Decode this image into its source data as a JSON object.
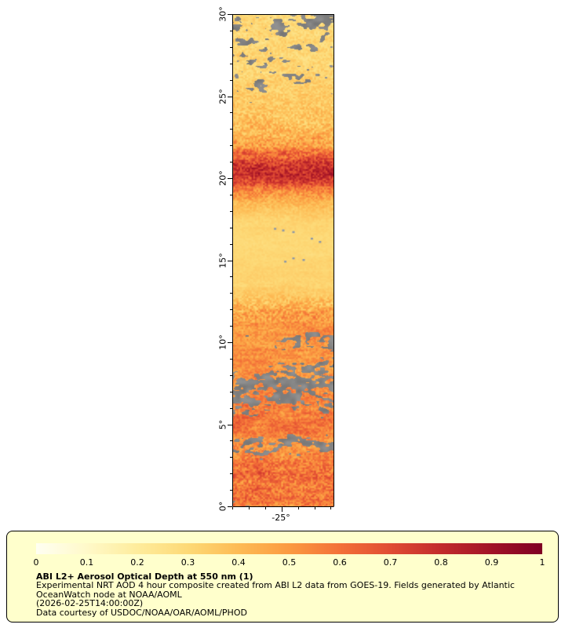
{
  "title": "ABI L2+ Aerosol Optical Depth at 550 nm (1)",
  "axes": {
    "lat_ticks": [
      {
        "value": 30,
        "label": "30°"
      },
      {
        "value": 25,
        "label": "25°"
      },
      {
        "value": 20,
        "label": "20°"
      },
      {
        "value": 15,
        "label": "15°"
      },
      {
        "value": 10,
        "label": "10°"
      },
      {
        "value": 5,
        "label": "5°"
      },
      {
        "value": 0,
        "label": "0°"
      }
    ],
    "lon_tick": {
      "value": -25,
      "label": "-25°"
    },
    "lat_range": [
      0,
      30
    ],
    "lon_range": [
      -28,
      -21.7
    ]
  },
  "colorbar": {
    "tick_labels": [
      "0",
      "0.1",
      "0.2",
      "0.3",
      "0.4",
      "0.5",
      "0.6",
      "0.7",
      "0.8",
      "0.9",
      "1"
    ],
    "stops": [
      {
        "v": 0.0,
        "c": "#FFFFF2"
      },
      {
        "v": 0.1,
        "c": "#FFF9C9"
      },
      {
        "v": 0.2,
        "c": "#FEEC9C"
      },
      {
        "v": 0.3,
        "c": "#FDD976"
      },
      {
        "v": 0.4,
        "c": "#FDBB54"
      },
      {
        "v": 0.5,
        "c": "#FB9A41"
      },
      {
        "v": 0.6,
        "c": "#F37038"
      },
      {
        "v": 0.7,
        "c": "#E04C33"
      },
      {
        "v": 0.8,
        "c": "#C22B2C"
      },
      {
        "v": 0.9,
        "c": "#A11326"
      },
      {
        "v": 1.0,
        "c": "#7F0023"
      }
    ]
  },
  "legend": {
    "background": "#FFFFCC",
    "title": "ABI L2+ Aerosol Optical Depth at 550 nm (1)",
    "description_lines": [
      "Experimental NRT AOD 4 hour composite created from ABI L2 data from GOES-19. Fields generated by Atlantic",
      "OceanWatch node at NOAA/AOML",
      "(2026-02-25T14:00:00Z)",
      "Data courtesy of USDOC/NOAA/OAR/AOML/PHOD"
    ]
  },
  "chart_data": {
    "type": "heatmap",
    "title": "ABI L2+ Aerosol Optical Depth at 550 nm (1)",
    "variable": "Aerosol Optical Depth at 550 nm",
    "value_range": [
      0,
      1
    ],
    "colorbar_ticks": [
      0,
      0.1,
      0.2,
      0.3,
      0.4,
      0.5,
      0.6,
      0.7,
      0.8,
      0.9,
      1
    ],
    "lat_ticks": [
      0,
      5,
      10,
      15,
      20,
      25,
      30
    ],
    "lon_labeled_tick": -25,
    "no_data_color": "#848484",
    "source": "ABI L2 data from GOES-19",
    "timestamp_label": "(2026-02-25T14:00:00Z)"
  },
  "map": {
    "cloud_gray_base": 118,
    "island_color": "#8C96A6",
    "aod_profile": [
      [
        30,
        0.3
      ],
      [
        28,
        0.3
      ],
      [
        26,
        0.32
      ],
      [
        24,
        0.36
      ],
      [
        23,
        0.4
      ],
      [
        22,
        0.48
      ],
      [
        21.3,
        0.65
      ],
      [
        20.7,
        0.78
      ],
      [
        20.2,
        0.8
      ],
      [
        19.7,
        0.68
      ],
      [
        19.2,
        0.52
      ],
      [
        18.5,
        0.4
      ],
      [
        17.5,
        0.32
      ],
      [
        16.5,
        0.3
      ],
      [
        15.5,
        0.3
      ],
      [
        14.5,
        0.32
      ],
      [
        13.5,
        0.32
      ],
      [
        12.5,
        0.38
      ],
      [
        11.8,
        0.46
      ],
      [
        11.2,
        0.5
      ],
      [
        10.5,
        0.52
      ],
      [
        10,
        0.5
      ],
      [
        9.5,
        0.55
      ],
      [
        9,
        0.52
      ],
      [
        8.5,
        0.5
      ],
      [
        8,
        0.52
      ],
      [
        7.5,
        0.5
      ],
      [
        7,
        0.52
      ],
      [
        6.5,
        0.55
      ],
      [
        6,
        0.52
      ],
      [
        5.5,
        0.58
      ],
      [
        5,
        0.6
      ],
      [
        4.5,
        0.55
      ],
      [
        4,
        0.5
      ],
      [
        3.5,
        0.52
      ],
      [
        3,
        0.55
      ],
      [
        2.5,
        0.58
      ],
      [
        2,
        0.6
      ],
      [
        1.5,
        0.58
      ],
      [
        1,
        0.6
      ],
      [
        0.5,
        0.58
      ],
      [
        0,
        0.55
      ]
    ],
    "amp_streak": [
      [
        30,
        0.05
      ],
      [
        25,
        0.05
      ],
      [
        23,
        0.07
      ],
      [
        21,
        0.08
      ],
      [
        19,
        0.06
      ],
      [
        18,
        0.03
      ],
      [
        16,
        0.02
      ],
      [
        13,
        0.03
      ],
      [
        12,
        0.06
      ],
      [
        11,
        0.08
      ],
      [
        10,
        0.1
      ],
      [
        9,
        0.1
      ],
      [
        8,
        0.1
      ],
      [
        7,
        0.1
      ],
      [
        6,
        0.1
      ],
      [
        5,
        0.1
      ],
      [
        4,
        0.09
      ],
      [
        3,
        0.08
      ],
      [
        2,
        0.08
      ],
      [
        1,
        0.08
      ],
      [
        0,
        0.08
      ]
    ],
    "amp_speckle": [
      [
        30,
        0.06
      ],
      [
        27,
        0.06
      ],
      [
        25,
        0.07
      ],
      [
        23.5,
        0.1
      ],
      [
        22,
        0.12
      ],
      [
        21,
        0.13
      ],
      [
        20,
        0.13
      ],
      [
        19,
        0.1
      ],
      [
        18,
        0.04
      ],
      [
        17,
        0.02
      ],
      [
        14,
        0.02
      ],
      [
        13,
        0.04
      ],
      [
        12.3,
        0.12
      ],
      [
        11.5,
        0.12
      ],
      [
        11,
        0.08
      ],
      [
        10,
        0.07
      ],
      [
        9,
        0.07
      ],
      [
        8,
        0.07
      ],
      [
        7,
        0.07
      ],
      [
        6,
        0.08
      ],
      [
        5,
        0.08
      ],
      [
        4,
        0.08
      ],
      [
        3,
        0.1
      ],
      [
        2,
        0.12
      ],
      [
        1,
        0.12
      ],
      [
        0,
        0.11
      ]
    ],
    "cloud_profile": [
      [
        30,
        0.5
      ],
      [
        29,
        0.45
      ],
      [
        28,
        0.4
      ],
      [
        27,
        0.38
      ],
      [
        26,
        0.34
      ],
      [
        25,
        0.3
      ],
      [
        24.3,
        0.18
      ],
      [
        23.5,
        0.08
      ],
      [
        22.7,
        0.05
      ],
      [
        22,
        0.03
      ],
      [
        21,
        0.02
      ],
      [
        20,
        0.015
      ],
      [
        19,
        0.01
      ],
      [
        18,
        0.005
      ],
      [
        16,
        0.004
      ],
      [
        14,
        0.004
      ],
      [
        13,
        0.005
      ],
      [
        12,
        0.01
      ],
      [
        11.3,
        0.03
      ],
      [
        10.8,
        0.15
      ],
      [
        10.4,
        0.4
      ],
      [
        10.1,
        0.45
      ],
      [
        9.8,
        0.3
      ],
      [
        9.4,
        0.22
      ],
      [
        9,
        0.28
      ],
      [
        8.6,
        0.35
      ],
      [
        8.2,
        0.45
      ],
      [
        7.8,
        0.55
      ],
      [
        7.4,
        0.6
      ],
      [
        7,
        0.55
      ],
      [
        6.6,
        0.5
      ],
      [
        6.2,
        0.42
      ],
      [
        5.8,
        0.32
      ],
      [
        5.4,
        0.28
      ],
      [
        5,
        0.25
      ],
      [
        4.6,
        0.3
      ],
      [
        4.2,
        0.45
      ],
      [
        3.8,
        0.55
      ],
      [
        3.4,
        0.5
      ],
      [
        3,
        0.28
      ],
      [
        2.6,
        0.15
      ],
      [
        2.2,
        0.1
      ],
      [
        1.8,
        0.08
      ],
      [
        1.4,
        0.08
      ],
      [
        1,
        0.1
      ],
      [
        0.6,
        0.14
      ],
      [
        0.2,
        0.18
      ],
      [
        0,
        0.2
      ]
    ],
    "cloud_side_bias": [
      [
        30,
        0.1
      ],
      [
        28,
        0.05
      ],
      [
        26,
        0.0
      ],
      [
        24,
        0.0
      ],
      [
        12,
        0.0
      ],
      [
        10.5,
        0.35
      ],
      [
        10,
        0.4
      ],
      [
        9.5,
        0.35
      ],
      [
        9,
        0.3
      ],
      [
        8,
        0.2
      ],
      [
        7,
        0.05
      ],
      [
        6,
        0.0
      ],
      [
        5,
        0.1
      ],
      [
        4,
        0.0
      ],
      [
        3,
        -0.1
      ],
      [
        2,
        -0.05
      ],
      [
        1,
        0.0
      ],
      [
        0,
        0.0
      ]
    ],
    "islands": [
      {
        "lat": 16.9,
        "fx": 0.42,
        "r": 1.5
      },
      {
        "lat": 16.8,
        "fx": 0.5,
        "r": 1.5
      },
      {
        "lat": 16.7,
        "fx": 0.6,
        "r": 1.5
      },
      {
        "lat": 16.3,
        "fx": 0.78,
        "r": 1.5
      },
      {
        "lat": 16.1,
        "fx": 0.86,
        "r": 1.5
      },
      {
        "lat": 15.1,
        "fx": 0.6,
        "r": 1.5
      },
      {
        "lat": 15.0,
        "fx": 0.7,
        "r": 1.5
      },
      {
        "lat": 14.9,
        "fx": 0.52,
        "r": 1.5
      }
    ]
  }
}
